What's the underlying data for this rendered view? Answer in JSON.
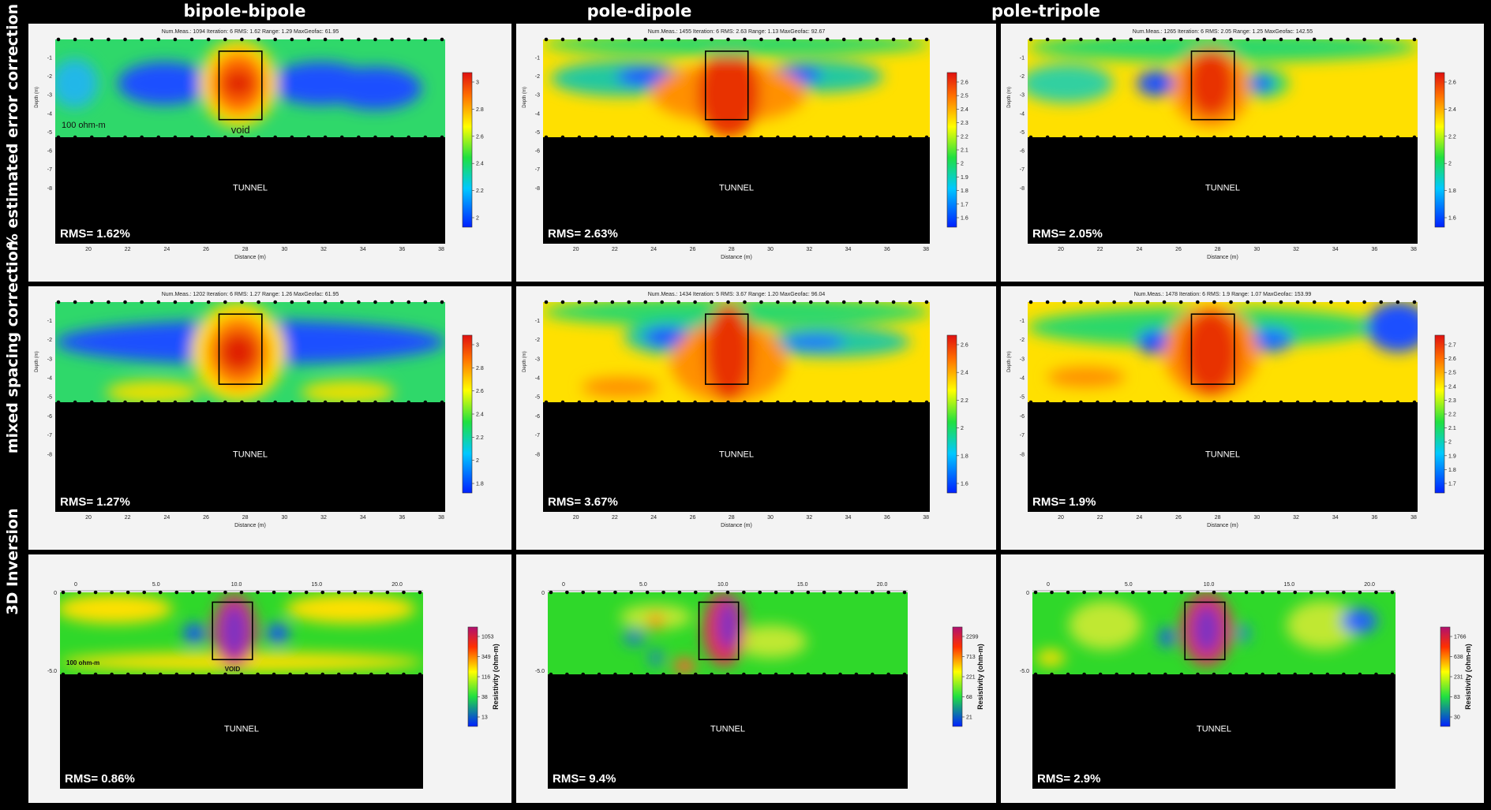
{
  "column_titles": [
    "bipole-bipole",
    "pole-dipole",
    "pole-tripole"
  ],
  "row_titles": [
    "% estimated error correction",
    "mixed spacing correction",
    "3D Inversion"
  ],
  "panels": [
    {
      "id": "p00",
      "kind": "2d",
      "header": "Num.Meas.: 1094   Iteration: 6   RMS: 1.62   Range: 1.29   MaxGeofac: 61.95",
      "rms": "RMS= 1.62%",
      "tunnel": "TUNNEL",
      "void_label": "void",
      "bg_label": "100 ohm-m",
      "y_ticks": [
        "-1",
        "-2",
        "-3",
        "-4",
        "-5",
        "-6",
        "-7",
        "-8"
      ],
      "x_ticks": [
        "20",
        "22",
        "24",
        "26",
        "28",
        "30",
        "32",
        "34",
        "36",
        "38"
      ],
      "x_label": "Distance (m)",
      "y_label": "Depth (m)",
      "cbar_ticks": [
        "3",
        "2.8",
        "2.6",
        "2.4",
        "2.2",
        "2"
      ],
      "style": "bb1"
    },
    {
      "id": "p01",
      "kind": "2d",
      "header": "Num.Meas.: 1455   Iteration: 6   RMS: 2.63   Range: 1.13   MaxGeofac: 92.67",
      "rms": "RMS= 2.63%",
      "tunnel": "TUNNEL",
      "void_label": "",
      "bg_label": "",
      "y_ticks": [
        "-1",
        "-2",
        "-3",
        "-4",
        "-5",
        "-6",
        "-7",
        "-8"
      ],
      "x_ticks": [
        "20",
        "22",
        "24",
        "26",
        "28",
        "30",
        "32",
        "34",
        "36",
        "38"
      ],
      "x_label": "Distance (m)",
      "y_label": "Depth (m)",
      "cbar_ticks": [
        "2.6",
        "2.5",
        "2.4",
        "2.3",
        "2.2",
        "2.1",
        "2",
        "1.9",
        "1.8",
        "1.7",
        "1.6"
      ],
      "style": "pd1"
    },
    {
      "id": "p02",
      "kind": "2d",
      "header": "Num.Meas.: 1265   Iteration: 6   RMS: 2.05   Range: 1.25   MaxGeofac: 142.55",
      "rms": "RMS= 2.05%",
      "tunnel": "TUNNEL",
      "void_label": "",
      "bg_label": "",
      "y_ticks": [
        "-1",
        "-2",
        "-3",
        "-4",
        "-5",
        "-6",
        "-7",
        "-8"
      ],
      "x_ticks": [
        "20",
        "22",
        "24",
        "26",
        "28",
        "30",
        "32",
        "34",
        "36",
        "38"
      ],
      "x_label": "Distance (m)",
      "y_label": "Depth (m)",
      "cbar_ticks": [
        "2.6",
        "2.4",
        "2.2",
        "2",
        "1.8",
        "1.6"
      ],
      "style": "pt1"
    },
    {
      "id": "p10",
      "kind": "2d",
      "header": "Num.Meas.: 1202   Iteration: 6   RMS: 1.27   Range: 1.26   MaxGeofac: 61.95",
      "rms": "RMS= 1.27%",
      "tunnel": "TUNNEL",
      "void_label": "",
      "bg_label": "",
      "y_ticks": [
        "-1",
        "-2",
        "-3",
        "-4",
        "-5",
        "-6",
        "-7",
        "-8"
      ],
      "x_ticks": [
        "20",
        "22",
        "24",
        "26",
        "28",
        "30",
        "32",
        "34",
        "36",
        "38"
      ],
      "x_label": "Distance (m)",
      "y_label": "Depth (m)",
      "cbar_ticks": [
        "3",
        "2.8",
        "2.6",
        "2.4",
        "2.2",
        "2",
        "1.8"
      ],
      "style": "bb2"
    },
    {
      "id": "p11",
      "kind": "2d",
      "header": "Num.Meas.: 1434   Iteration: 5   RMS: 3.67   Range: 1.20   MaxGeofac: 96.04",
      "rms": "RMS= 3.67%",
      "tunnel": "TUNNEL",
      "void_label": "",
      "bg_label": "",
      "y_ticks": [
        "-1",
        "-2",
        "-3",
        "-4",
        "-5",
        "-6",
        "-7",
        "-8"
      ],
      "x_ticks": [
        "20",
        "22",
        "24",
        "26",
        "28",
        "30",
        "32",
        "34",
        "36",
        "38"
      ],
      "x_label": "Distance (m)",
      "y_label": "Depth (m)",
      "cbar_ticks": [
        "2.6",
        "2.4",
        "2.2",
        "2",
        "1.8",
        "1.6"
      ],
      "style": "pd2"
    },
    {
      "id": "p12",
      "kind": "2d",
      "header": "Num.Meas.: 1478   Iteration: 6   RMS: 1.9   Range: 1.07   MaxGeofac: 153.99",
      "rms": "RMS= 1.9%",
      "tunnel": "TUNNEL",
      "void_label": "",
      "bg_label": "",
      "y_ticks": [
        "-1",
        "-2",
        "-3",
        "-4",
        "-5",
        "-6",
        "-7",
        "-8"
      ],
      "x_ticks": [
        "20",
        "22",
        "24",
        "26",
        "28",
        "30",
        "32",
        "34",
        "36",
        "38"
      ],
      "x_label": "Distance (m)",
      "y_label": "Depth (m)",
      "cbar_ticks": [
        "2.7",
        "2.6",
        "2.5",
        "2.4",
        "2.3",
        "2.2",
        "2.1",
        "2",
        "1.9",
        "1.8",
        "1.7"
      ],
      "style": "pt2"
    },
    {
      "id": "p20",
      "kind": "3d",
      "rms": "RMS= 0.86%",
      "tunnel": "TUNNEL",
      "void_label": "VOID",
      "bg_label": "100 ohm-m",
      "x_ticks": [
        "0",
        "5.0",
        "10.0",
        "15.0",
        "20.0"
      ],
      "y_ticks": [
        "0",
        "-5.0"
      ],
      "cbar_ticks": [
        "1053",
        "349",
        "116",
        "38",
        "13"
      ],
      "cbar_label": "Resistivity (ohm-m)",
      "style": "bb3"
    },
    {
      "id": "p21",
      "kind": "3d",
      "rms": "RMS= 9.4%",
      "tunnel": "TUNNEL",
      "void_label": "",
      "bg_label": "",
      "x_ticks": [
        "0",
        "5.0",
        "10.0",
        "15.0",
        "20.0"
      ],
      "y_ticks": [
        "0",
        "-5.0"
      ],
      "cbar_ticks": [
        "2299",
        "713",
        "221",
        "68",
        "21"
      ],
      "cbar_label": "Resistivity (ohm-m)",
      "style": "pd3"
    },
    {
      "id": "p22",
      "kind": "3d",
      "rms": "RMS= 2.9%",
      "tunnel": "TUNNEL",
      "void_label": "",
      "bg_label": "",
      "x_ticks": [
        "0",
        "5.0",
        "10.0",
        "15.0",
        "20.0"
      ],
      "y_ticks": [
        "0",
        "-5.0"
      ],
      "cbar_ticks": [
        "1766",
        "638",
        "231",
        "83",
        "30"
      ],
      "cbar_label": "Resistivity (ohm-m)",
      "style": "pt3"
    }
  ],
  "chart_data": {
    "type": "heatmap",
    "panels": [
      {
        "row": "% estimated error correction",
        "column": "bipole-bipole",
        "rms_percent": 1.62,
        "iteration": 6,
        "num_meas": 1094,
        "range": 1.29,
        "max_geofac": 61.95
      },
      {
        "row": "% estimated error correction",
        "column": "pole-dipole",
        "rms_percent": 2.63,
        "iteration": 6,
        "num_meas": 1455,
        "range": 1.13,
        "max_geofac": 92.67
      },
      {
        "row": "% estimated error correction",
        "column": "pole-tripole",
        "rms_percent": 2.05,
        "iteration": 6,
        "num_meas": 1265,
        "range": 1.25,
        "max_geofac": 142.55
      },
      {
        "row": "mixed spacing correction",
        "column": "bipole-bipole",
        "rms_percent": 1.27,
        "iteration": 6,
        "num_meas": 1202,
        "range": 1.26,
        "max_geofac": 61.95
      },
      {
        "row": "mixed spacing correction",
        "column": "pole-dipole",
        "rms_percent": 3.67,
        "iteration": 5,
        "num_meas": 1434,
        "range": 1.2,
        "max_geofac": 96.04
      },
      {
        "row": "mixed spacing correction",
        "column": "pole-tripole",
        "rms_percent": 1.9,
        "iteration": 6,
        "num_meas": 1478,
        "range": 1.07,
        "max_geofac": 153.99
      },
      {
        "row": "3D Inversion",
        "column": "bipole-bipole",
        "rms_percent": 0.86
      },
      {
        "row": "3D Inversion",
        "column": "pole-dipole",
        "rms_percent": 9.4
      },
      {
        "row": "3D Inversion",
        "column": "pole-tripole",
        "rms_percent": 2.9
      }
    ],
    "xlabel": "Distance (m)",
    "ylabel": "Depth (m)",
    "xlim_2d": [
      19,
      38.5
    ],
    "ylim_2d": [
      -9,
      0
    ],
    "xlim_3d": [
      -1,
      22
    ],
    "colorscale": "rainbow (blue low, red high)"
  }
}
